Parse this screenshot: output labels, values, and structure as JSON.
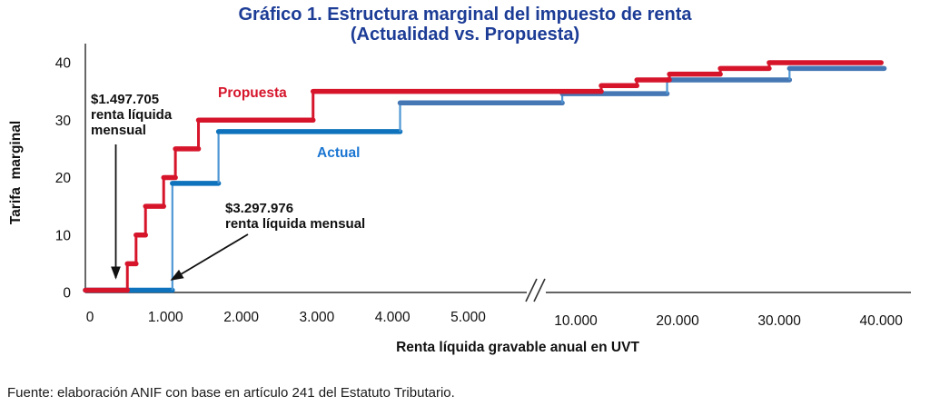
{
  "title": {
    "line1": "Gráfico 1. Estructura marginal del impuesto de renta",
    "line2": "(Actualidad vs. Propuesta)"
  },
  "footer": {
    "source": "Fuente: elaboración ANIF con base en artículo 241 del Estatuto Tributario."
  },
  "colors": {
    "title": "#1c3c96",
    "axis": "#4d4d4d",
    "annotation": "#111111"
  },
  "chart_data": {
    "type": "line",
    "variant": "step",
    "title": "Gráfico 1. Estructura marginal del impuesto de renta (Actualidad vs. Propuesta)",
    "xlabel": "Renta líquida gravable anual en UVT",
    "ylabel": "Tarifa  marginal",
    "legend_position": "inline-labels",
    "grid": false,
    "x_axis": {
      "unit": "UVT",
      "axis_break": true,
      "left_ticks": [
        {
          "value": 0,
          "label": "0"
        },
        {
          "value": 1000,
          "label": "1.000"
        },
        {
          "value": 2000,
          "label": "2.000"
        },
        {
          "value": 3000,
          "label": "3.000"
        },
        {
          "value": 4000,
          "label": "4.000"
        },
        {
          "value": 5000,
          "label": "5.000"
        }
      ],
      "right_ticks": [
        {
          "value": 10000,
          "label": "10.000"
        },
        {
          "value": 20000,
          "label": "20.000"
        },
        {
          "value": 30000,
          "label": "30.000"
        },
        {
          "value": 40000,
          "label": "40.000"
        }
      ]
    },
    "y_axis": {
      "unit": "%",
      "range": [
        0,
        40
      ],
      "ticks": [
        {
          "value": 0,
          "label": "0"
        },
        {
          "value": 10,
          "label": "10"
        },
        {
          "value": 20,
          "label": "20"
        },
        {
          "value": 30,
          "label": "30"
        },
        {
          "value": 40,
          "label": "40"
        }
      ]
    },
    "series": [
      {
        "name": "Propuesta",
        "color": "#d6152b",
        "label_color": "#d6152b",
        "steps": [
          {
            "from": 0,
            "to": 495,
            "rate": 0
          },
          {
            "from": 495,
            "to": 610,
            "rate": 5
          },
          {
            "from": 610,
            "to": 735,
            "rate": 10
          },
          {
            "from": 735,
            "to": 975,
            "rate": 15
          },
          {
            "from": 975,
            "to": 1130,
            "rate": 20
          },
          {
            "from": 1130,
            "to": 1435,
            "rate": 25
          },
          {
            "from": 1435,
            "to": 2950,
            "rate": 30
          },
          {
            "from": 2950,
            "to": 12500,
            "rate": 35
          },
          {
            "from": 12500,
            "to": 16000,
            "rate": 36
          },
          {
            "from": 16000,
            "to": 19200,
            "rate": 37
          },
          {
            "from": 19200,
            "to": 24200,
            "rate": 38
          },
          {
            "from": 24200,
            "to": 29000,
            "rate": 39
          },
          {
            "from": 29000,
            "to": 40000,
            "rate": 40
          }
        ]
      },
      {
        "name": "Actual",
        "color": "#0e72bc",
        "color_upper": "#4577b4",
        "label_color": "#1b76d2",
        "steps": [
          {
            "from": 0,
            "to": 1090,
            "rate": 0
          },
          {
            "from": 1090,
            "to": 1700,
            "rate": 19
          },
          {
            "from": 1700,
            "to": 4100,
            "rate": 28
          },
          {
            "from": 4100,
            "to": 8670,
            "rate": 33
          },
          {
            "from": 8670,
            "to": 18970,
            "rate": 35
          },
          {
            "from": 18970,
            "to": 31000,
            "rate": 37
          },
          {
            "from": 31000,
            "to": 40300,
            "rate": 39
          }
        ]
      }
    ],
    "annotations": [
      {
        "lines": [
          "$1.497.705",
          "renta líquida",
          "mensual"
        ],
        "series": "Propuesta",
        "meaning": "umbral donde inicia la tarifa propuesta"
      },
      {
        "lines": [
          "$3.297.976",
          "renta líquida mensual"
        ],
        "series": "Actual",
        "meaning": "umbral donde inicia la tarifa actual"
      }
    ]
  }
}
